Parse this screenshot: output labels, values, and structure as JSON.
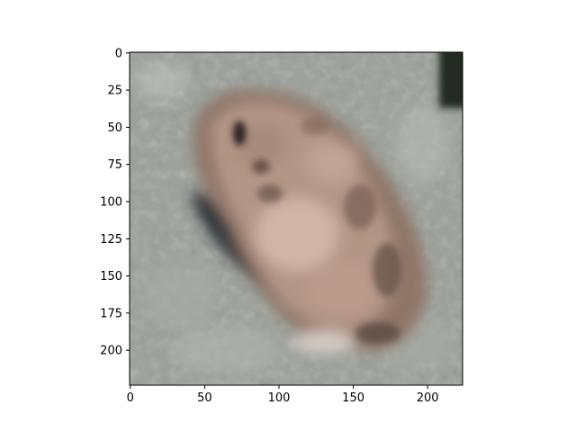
{
  "image": {
    "width": 224,
    "height": 224,
    "description_colors": {
      "background_gray": "#9ea39d",
      "frog_tan": "#b29485",
      "shadow": "#2d3138",
      "dark_corner": "#1f2a23"
    }
  },
  "axes": {
    "x_ticks": [
      {
        "value": 0,
        "label": "0"
      },
      {
        "value": 50,
        "label": "50"
      },
      {
        "value": 100,
        "label": "100"
      },
      {
        "value": 150,
        "label": "150"
      },
      {
        "value": 200,
        "label": "200"
      }
    ],
    "y_ticks": [
      {
        "value": 0,
        "label": "0"
      },
      {
        "value": 25,
        "label": "25"
      },
      {
        "value": 50,
        "label": "50"
      },
      {
        "value": 75,
        "label": "75"
      },
      {
        "value": 100,
        "label": "100"
      },
      {
        "value": 125,
        "label": "125"
      },
      {
        "value": 150,
        "label": "150"
      },
      {
        "value": 175,
        "label": "175"
      },
      {
        "value": 200,
        "label": "200"
      }
    ]
  }
}
